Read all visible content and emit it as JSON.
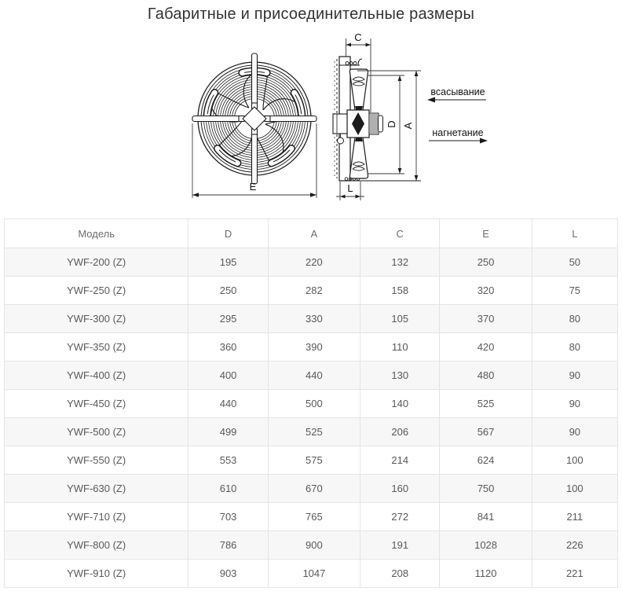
{
  "title": "Габаритные и присоединительные размеры",
  "diagram": {
    "dim_labels": {
      "c": "C",
      "d": "D",
      "a": "A",
      "e": "E",
      "l": "L"
    },
    "flow_labels": {
      "suction": "всасывание",
      "discharge": "нагнетание"
    }
  },
  "table": {
    "columns": [
      "Модель",
      "D",
      "A",
      "C",
      "E",
      "L"
    ],
    "rows": [
      [
        "YWF-200 (Z)",
        "195",
        "220",
        "132",
        "250",
        "50"
      ],
      [
        "YWF-250 (Z)",
        "250",
        "282",
        "158",
        "320",
        "75"
      ],
      [
        "YWF-300 (Z)",
        "295",
        "330",
        "105",
        "370",
        "80"
      ],
      [
        "YWF-350 (Z)",
        "360",
        "390",
        "110",
        "420",
        "80"
      ],
      [
        "YWF-400 (Z)",
        "400",
        "440",
        "130",
        "480",
        "90"
      ],
      [
        "YWF-450 (Z)",
        "440",
        "500",
        "140",
        "525",
        "90"
      ],
      [
        "YWF-500 (Z)",
        "499",
        "525",
        "206",
        "567",
        "90"
      ],
      [
        "YWF-550 (Z)",
        "553",
        "575",
        "214",
        "624",
        "100"
      ],
      [
        "YWF-630 (Z)",
        "610",
        "670",
        "160",
        "750",
        "100"
      ],
      [
        "YWF-710 (Z)",
        "703",
        "765",
        "272",
        "841",
        "211"
      ],
      [
        "YWF-800 (Z)",
        "786",
        "900",
        "191",
        "1028",
        "226"
      ],
      [
        "YWF-910 (Z)",
        "903",
        "1047",
        "208",
        "1120",
        "221"
      ]
    ]
  },
  "colors": {
    "title_text": "#333333",
    "table_text": "#595959",
    "table_border": "#e4e4e4",
    "stripe_bg": "#f7f7f7",
    "line": "#1c1c1c"
  }
}
